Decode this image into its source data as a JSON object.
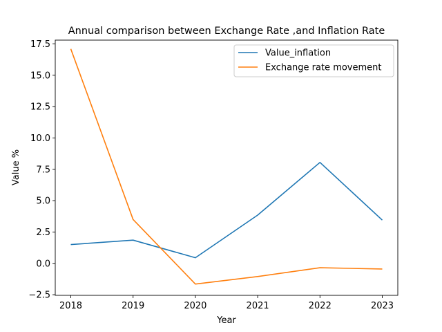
{
  "chart_data": {
    "type": "line",
    "title": "Annual comparison between Exchange Rate ,and Inflation Rate",
    "xlabel": "Year",
    "ylabel": "Value %",
    "x": [
      "2018",
      "2019",
      "2020",
      "2021",
      "2022",
      "2023"
    ],
    "ylim": [
      -2.55,
      17.8
    ],
    "yticks": [
      -2.5,
      0.0,
      2.5,
      5.0,
      7.5,
      10.0,
      12.5,
      15.0,
      17.5
    ],
    "ytick_labels": [
      "−2.5",
      "0.0",
      "2.5",
      "5.0",
      "7.5",
      "10.0",
      "12.5",
      "15.0",
      "17.5"
    ],
    "grid": false,
    "legend_position": "top-right",
    "series": [
      {
        "name": "Value_inflation",
        "color": "#1f77b4",
        "values": [
          1.5,
          1.85,
          0.45,
          3.85,
          8.05,
          3.45
        ]
      },
      {
        "name": "Exchange rate movement",
        "color": "#ff7f0e",
        "values": [
          17.1,
          3.5,
          -1.65,
          -1.05,
          -0.35,
          -0.45
        ]
      }
    ]
  }
}
